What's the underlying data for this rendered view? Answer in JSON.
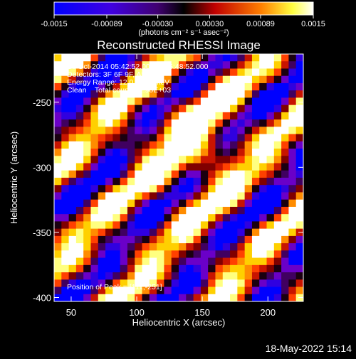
{
  "chart_data": {
    "type": "heatmap",
    "title": "Reconstructed RHESSI Image",
    "xlabel": "Heliocentric X (arcsec)",
    "ylabel": "Heliocentric Y (arcsec)",
    "xlim": [
      37,
      227
    ],
    "ylim": [
      -403,
      -213
    ],
    "xticks": [
      "50",
      "100",
      "150",
      "200"
    ],
    "xtick_values": [
      50,
      100,
      150,
      200
    ],
    "yticks": [
      "-250",
      "-300",
      "-350",
      "-400"
    ],
    "ytick_values": [
      -250,
      -300,
      -350,
      -400
    ],
    "colorbar": {
      "range": [
        -0.0015,
        0.0015
      ],
      "ticks": [
        "-0.0015",
        "-0.00089",
        "-0.00030",
        "0.00030",
        "0.00089",
        "0.0015"
      ],
      "tick_values": [
        -0.0015,
        -0.00089,
        -0.0003,
        0.0003,
        0.00089,
        0.0015
      ],
      "unit_label": "(photons cm⁻² s⁻¹ asec⁻²)"
    },
    "peak": [
      111,
      -251
    ],
    "colors": {
      "min": "#0000ff",
      "low": "#6a00c8",
      "mid_dark": "#1a0010",
      "mid": "#c81400",
      "high": "#ff8c00",
      "max": "#ffffff"
    }
  },
  "annotations": {
    "time_range": "24-Oct-2014 05:42:52.000 to 05:48:52.000",
    "detectors": "Detectors: 3F 6F 9F, Att 0",
    "energy": "Energy Range: 12.0 - 25.0 keV",
    "clean": "Clean    Total counts: 2.90E+03",
    "peak_text": "Position of Peak = [111,-251]"
  },
  "footer": {
    "date": "18-May-2022 15:14"
  }
}
